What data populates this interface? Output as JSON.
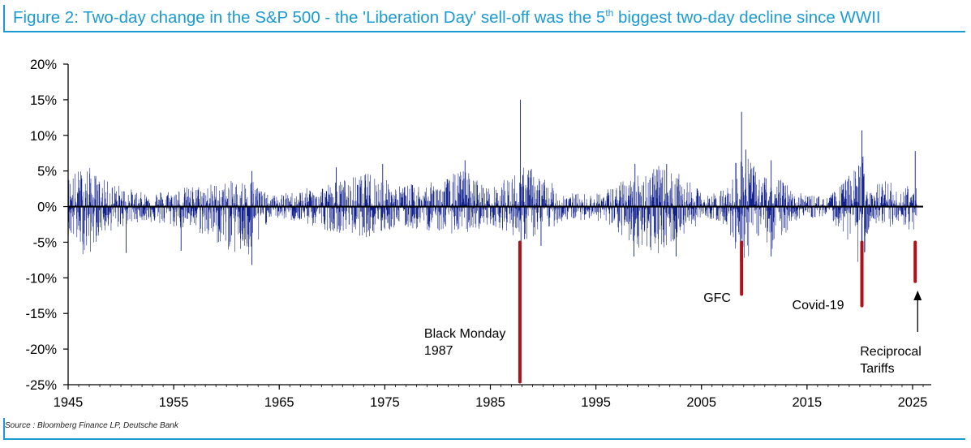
{
  "header": {
    "title_main": "Figure 2: Two-day change in the S&P 500 - the 'Liberation Day' sell-off was the 5",
    "title_sup": "th",
    "title_tail": " biggest two-day decline since WWII"
  },
  "source": "Source : Bloomberg Finance LP, Deutsche Bank",
  "chart_data": {
    "type": "bar",
    "title": "Figure 2: Two-day change in the S&P 500 - the 'Liberation Day' sell-off was the 5th biggest two-day decline since WWII",
    "xlabel": "",
    "ylabel": "",
    "xlim": [
      1945,
      2026
    ],
    "ylim": [
      -25,
      20
    ],
    "x_ticks": [
      "1945",
      "1955",
      "1965",
      "1975",
      "1985",
      "1995",
      "2005",
      "2015",
      "2025"
    ],
    "y_ticks": [
      "20%",
      "15%",
      "10%",
      "5%",
      "0%",
      "-5%",
      "-10%",
      "-15%",
      "-20%",
      "-25%"
    ],
    "y_unit": "%",
    "series_color": "#0f1f8c",
    "highlight_color": "#a8141c",
    "noise_envelope": [
      {
        "year": 1945,
        "pos": 4.5,
        "neg": -4
      },
      {
        "year": 1946.8,
        "pos": 6,
        "neg": -7.5
      },
      {
        "year": 1948,
        "pos": 4,
        "neg": -4
      },
      {
        "year": 1952,
        "pos": 2,
        "neg": -2
      },
      {
        "year": 1955,
        "pos": 2.5,
        "neg": -3
      },
      {
        "year": 1957,
        "pos": 3,
        "neg": -3.5
      },
      {
        "year": 1962.5,
        "pos": 4,
        "neg": -8.2
      },
      {
        "year": 1964,
        "pos": 1.5,
        "neg": -1.5
      },
      {
        "year": 1966,
        "pos": 2,
        "neg": -2
      },
      {
        "year": 1970,
        "pos": 3.5,
        "neg": -3.5
      },
      {
        "year": 1974,
        "pos": 5,
        "neg": -4.5
      },
      {
        "year": 1976,
        "pos": 3,
        "neg": -3
      },
      {
        "year": 1980,
        "pos": 3.5,
        "neg": -3.5
      },
      {
        "year": 1982.5,
        "pos": 5.5,
        "neg": -4
      },
      {
        "year": 1985,
        "pos": 2.5,
        "neg": -2.5
      },
      {
        "year": 1988.5,
        "pos": 6,
        "neg": -5
      },
      {
        "year": 1992,
        "pos": 2,
        "neg": -2
      },
      {
        "year": 1995,
        "pos": 1.8,
        "neg": -1.8
      },
      {
        "year": 1998,
        "pos": 4,
        "neg": -5
      },
      {
        "year": 2000.5,
        "pos": 6,
        "neg": -7
      },
      {
        "year": 2003,
        "pos": 4.5,
        "neg": -4.5
      },
      {
        "year": 2005.5,
        "pos": 1.5,
        "neg": -1.5
      },
      {
        "year": 2007.5,
        "pos": 3,
        "neg": -3
      },
      {
        "year": 2008.9,
        "pos": 9,
        "neg": -9
      },
      {
        "year": 2010.5,
        "pos": 4,
        "neg": -4
      },
      {
        "year": 2011.7,
        "pos": 5,
        "neg": -6
      },
      {
        "year": 2014,
        "pos": 2,
        "neg": -2
      },
      {
        "year": 2017,
        "pos": 1.3,
        "neg": -1.3
      },
      {
        "year": 2018.5,
        "pos": 3.5,
        "neg": -4
      },
      {
        "year": 2020.2,
        "pos": 7,
        "neg": -9
      },
      {
        "year": 2021,
        "pos": 2.5,
        "neg": -2.5
      },
      {
        "year": 2022.5,
        "pos": 4,
        "neg": -4
      },
      {
        "year": 2024,
        "pos": 2,
        "neg": -2.5
      },
      {
        "year": 2025.3,
        "pos": 5,
        "neg": -4
      }
    ],
    "spikes": [
      {
        "year": 1950.5,
        "value": -6.5
      },
      {
        "year": 1955.7,
        "value": -6.2
      },
      {
        "year": 1962.4,
        "value": 5.0
      },
      {
        "year": 1962.4,
        "value": -8.2
      },
      {
        "year": 1970.4,
        "value": 5.5
      },
      {
        "year": 1974.8,
        "value": 6.0
      },
      {
        "year": 1982.6,
        "value": 6.5
      },
      {
        "year": 1987.85,
        "value": 15.0
      },
      {
        "year": 1987.9,
        "value": -7.5
      },
      {
        "year": 1989.8,
        "value": -5.5
      },
      {
        "year": 1998.7,
        "value": 6.0
      },
      {
        "year": 1998.6,
        "value": -7.0
      },
      {
        "year": 2001.7,
        "value": 6.0
      },
      {
        "year": 2002.6,
        "value": -7.0
      },
      {
        "year": 2008.8,
        "value": 13.3
      },
      {
        "year": 2009.2,
        "value": 8.0
      },
      {
        "year": 2011.6,
        "value": 6.5
      },
      {
        "year": 2011.6,
        "value": -7.0
      },
      {
        "year": 2020.2,
        "value": 10.7
      },
      {
        "year": 2020.3,
        "value": 7.0
      },
      {
        "year": 2025.25,
        "value": 7.8
      }
    ],
    "highlighted_declines": [
      {
        "label_lines": [
          "Black Monday",
          "1987"
        ],
        "year": 1987.8,
        "value": -24.6
      },
      {
        "label_lines": [
          "GFC"
        ],
        "year": 2008.8,
        "value": -12.3
      },
      {
        "label_lines": [
          "Covid-19"
        ],
        "year": 2020.2,
        "value": -13.9
      },
      {
        "label_lines": [
          "Reciprocal",
          "Tariffs"
        ],
        "year": 2025.25,
        "value": -10.5
      }
    ]
  }
}
